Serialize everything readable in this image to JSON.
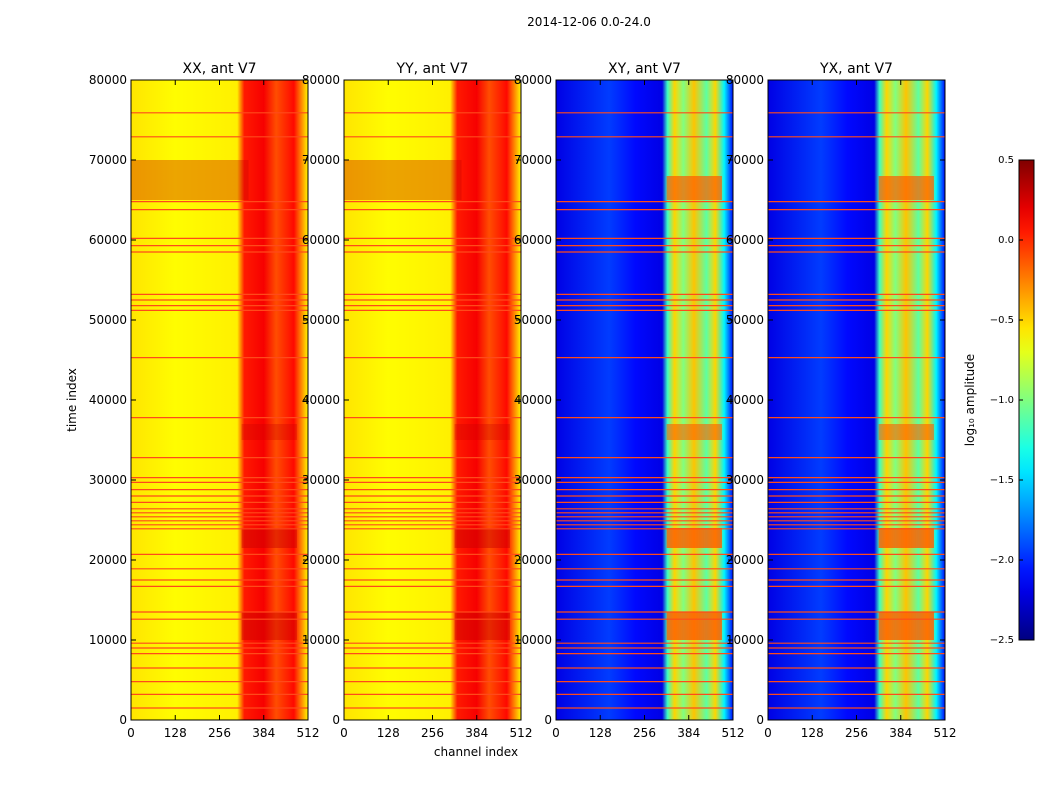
{
  "chart_data": {
    "type": "heatmap",
    "suptitle": "2014-12-06 0.0-24.0",
    "xlabel": "channel index",
    "ylabel": "time index",
    "xlim": [
      0,
      512
    ],
    "ylim": [
      0,
      80000
    ],
    "xticks": [
      0,
      128,
      256,
      384,
      512
    ],
    "yticks": [
      0,
      10000,
      20000,
      30000,
      40000,
      50000,
      60000,
      70000,
      80000
    ],
    "panels": [
      {
        "title": "XX, ant V7",
        "kind": "auto"
      },
      {
        "title": "YY, ant V7",
        "kind": "auto"
      },
      {
        "title": "XY, ant V7",
        "kind": "cross"
      },
      {
        "title": "YX, ant V7",
        "kind": "cross"
      }
    ],
    "colorbar": {
      "label": "log₁₀ amplitude",
      "range": [
        -2.5,
        0.5
      ],
      "ticks": [
        0.5,
        0.0,
        -0.5,
        -1.0,
        -1.5,
        -2.0,
        -2.5
      ],
      "tick_labels": [
        "0.5",
        "0.0",
        "−0.5",
        "−1.0",
        "−1.5",
        "−2.0",
        "−2.5"
      ]
    },
    "flagged_time_rows": [
      1500,
      3200,
      4800,
      6500,
      8300,
      9000,
      9600,
      12600,
      13500,
      16700,
      17500,
      18900,
      20700,
      23900,
      24400,
      24900,
      25400,
      25900,
      26400,
      27200,
      28000,
      28800,
      29700,
      30300,
      32800,
      37800,
      45300,
      51200,
      51800,
      52500,
      53200,
      58500,
      59300,
      60200,
      63800,
      64800,
      72900,
      75900
    ]
  }
}
